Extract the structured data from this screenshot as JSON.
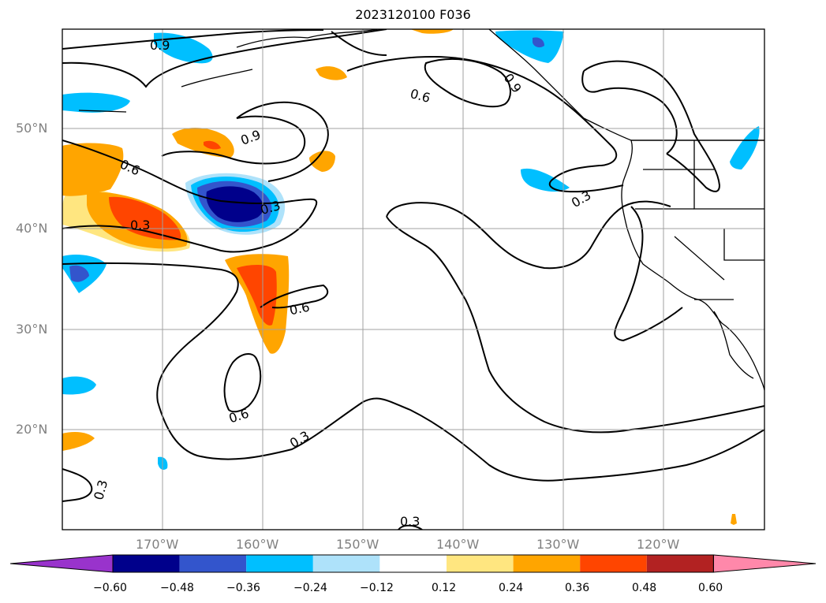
{
  "title": "2023120100 F036",
  "map": {
    "lat_labels": [
      "50°N",
      "40°N",
      "30°N",
      "20°N"
    ],
    "lon_labels": [
      "170°W",
      "160°W",
      "150°W",
      "140°W",
      "130°W",
      "120°W"
    ],
    "contour_labels": [
      "0.9",
      "0.9",
      "0.9",
      "0.6",
      "0.6",
      "0.6",
      "0.6",
      "0.3",
      "0.3",
      "0.3",
      "0.3",
      "0.3",
      "0.3"
    ],
    "colors": {
      "dark_navy": "#00008b",
      "blue": "#3355cc",
      "cyan": "#00bfff",
      "light_blue": "#aee2fa",
      "yellow": "#ffe680",
      "orange": "#ffa500",
      "red_orange": "#ff4500",
      "dark_red": "#b22222",
      "pink": "#ff88aa",
      "purple": "#9933cc"
    }
  },
  "colorbar": {
    "ticks": [
      "−0.60",
      "−0.48",
      "−0.36",
      "−0.24",
      "−0.12",
      "0.12",
      "0.24",
      "0.36",
      "0.48",
      "0.60"
    ],
    "colors": [
      "#9933cc",
      "#00008b",
      "#3355cc",
      "#00bfff",
      "#aee2fa",
      "#ffffff",
      "#ffe680",
      "#ffa500",
      "#ff4500",
      "#b22222",
      "#ff88aa"
    ]
  }
}
